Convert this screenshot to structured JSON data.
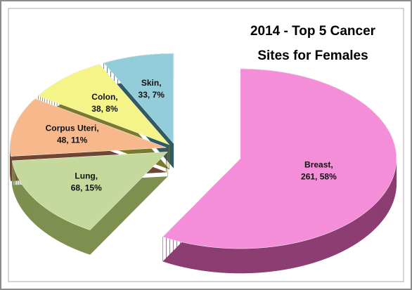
{
  "chart_data": {
    "type": "pie",
    "title": [
      "2014 - Top 5 Cancer",
      "Sites for Females"
    ],
    "categories": [
      "Breast,",
      "Lung,",
      "Corpus Uteri,",
      "Colon,",
      "Skin,"
    ],
    "values": [
      261,
      68,
      48,
      38,
      33
    ],
    "value_labels": [
      "261, 58%",
      "68, 15%",
      "48, 11%",
      "38, 8%",
      "33, 7%"
    ],
    "colors": [
      "#f48ed9",
      "#c6d99c",
      "#f7b98c",
      "#f4f489",
      "#92cdd9"
    ],
    "side_colors": [
      "#8c3d72",
      "#7e8f50",
      "#6e4631",
      "#7a7a2c",
      "#305b66"
    ]
  }
}
